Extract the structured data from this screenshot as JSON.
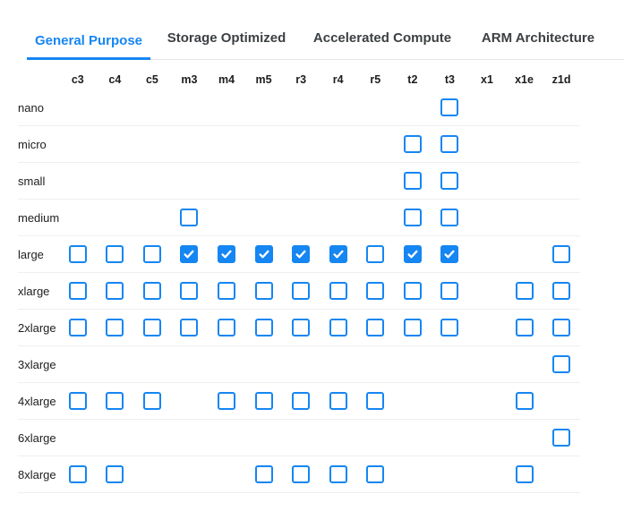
{
  "tabs": [
    {
      "label": "General Purpose",
      "active": true
    },
    {
      "label": "Storage Optimized",
      "active": false
    },
    {
      "label": "Accelerated Compute",
      "active": false
    },
    {
      "label": "ARM Architecture",
      "active": false
    }
  ],
  "matrix": {
    "columns": [
      "c3",
      "c4",
      "c5",
      "m3",
      "m4",
      "m5",
      "r3",
      "r4",
      "r5",
      "t2",
      "t3",
      "x1",
      "x1e",
      "z1d"
    ],
    "cell_legend": {
      "0": "no-checkbox",
      "1": "checkbox-unchecked",
      "2": "checkbox-checked"
    },
    "rows": [
      {
        "label": "nano",
        "cells": [
          0,
          0,
          0,
          0,
          0,
          0,
          0,
          0,
          0,
          0,
          1,
          0,
          0,
          0
        ]
      },
      {
        "label": "micro",
        "cells": [
          0,
          0,
          0,
          0,
          0,
          0,
          0,
          0,
          0,
          1,
          1,
          0,
          0,
          0
        ]
      },
      {
        "label": "small",
        "cells": [
          0,
          0,
          0,
          0,
          0,
          0,
          0,
          0,
          0,
          1,
          1,
          0,
          0,
          0
        ]
      },
      {
        "label": "medium",
        "cells": [
          0,
          0,
          0,
          1,
          0,
          0,
          0,
          0,
          0,
          1,
          1,
          0,
          0,
          0
        ]
      },
      {
        "label": "large",
        "cells": [
          1,
          1,
          1,
          2,
          2,
          2,
          2,
          2,
          1,
          2,
          2,
          0,
          0,
          1
        ]
      },
      {
        "label": "xlarge",
        "cells": [
          1,
          1,
          1,
          1,
          1,
          1,
          1,
          1,
          1,
          1,
          1,
          0,
          1,
          1
        ]
      },
      {
        "label": "2xlarge",
        "cells": [
          1,
          1,
          1,
          1,
          1,
          1,
          1,
          1,
          1,
          1,
          1,
          0,
          1,
          1
        ]
      },
      {
        "label": "3xlarge",
        "cells": [
          0,
          0,
          0,
          0,
          0,
          0,
          0,
          0,
          0,
          0,
          0,
          0,
          0,
          1
        ]
      },
      {
        "label": "4xlarge",
        "cells": [
          1,
          1,
          1,
          0,
          1,
          1,
          1,
          1,
          1,
          0,
          0,
          0,
          1,
          0
        ]
      },
      {
        "label": "6xlarge",
        "cells": [
          0,
          0,
          0,
          0,
          0,
          0,
          0,
          0,
          0,
          0,
          0,
          0,
          0,
          1
        ]
      },
      {
        "label": "8xlarge",
        "cells": [
          1,
          1,
          0,
          0,
          0,
          1,
          1,
          1,
          1,
          0,
          0,
          0,
          1,
          0
        ]
      }
    ]
  },
  "colors": {
    "accent": "#1586f2",
    "checkbox_checked_fill": "#1586f2",
    "checkmark": "#ffffff",
    "tab_active_text": "#1586f2",
    "tab_inactive_text": "#3c4043",
    "row_separator": "#efefef",
    "tab_bar_border": "#e4e4e4"
  }
}
